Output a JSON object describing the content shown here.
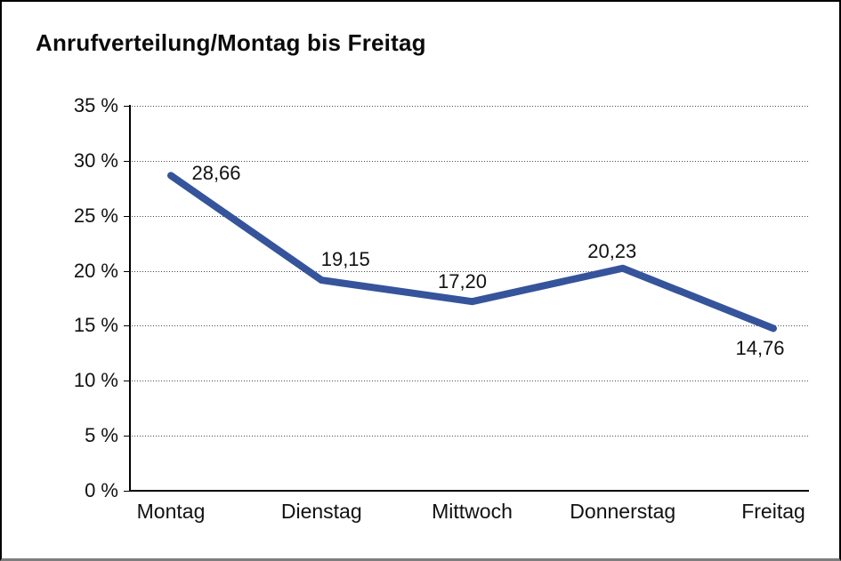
{
  "window": {
    "title": "Anrufverteilung/Montag bis Freitag"
  },
  "chart_data": {
    "type": "line",
    "title": "Anrufverteilung/Montag bis Freitag",
    "categories": [
      "Montag",
      "Dienstag",
      "Mittwoch",
      "Donnerstag",
      "Freitag"
    ],
    "values": [
      28.66,
      19.15,
      17.2,
      20.23,
      14.76
    ],
    "value_labels": [
      "28,66",
      "19,15",
      "17,20",
      "20,23",
      "14,76"
    ],
    "y_ticks": [
      {
        "value": 35,
        "label": "35 %"
      },
      {
        "value": 30,
        "label": "30 %"
      },
      {
        "value": 25,
        "label": "25 %"
      },
      {
        "value": 20,
        "label": "20 %"
      },
      {
        "value": 15,
        "label": "15 %"
      },
      {
        "value": 10,
        "label": "10 %"
      },
      {
        "value": 5,
        "label": "5 %"
      },
      {
        "value": 0,
        "label": "0 %"
      }
    ],
    "ylim": [
      0,
      35
    ],
    "unit": "%",
    "grid": "horizontal-dotted",
    "legend": "none",
    "line_color": "#35549B"
  }
}
